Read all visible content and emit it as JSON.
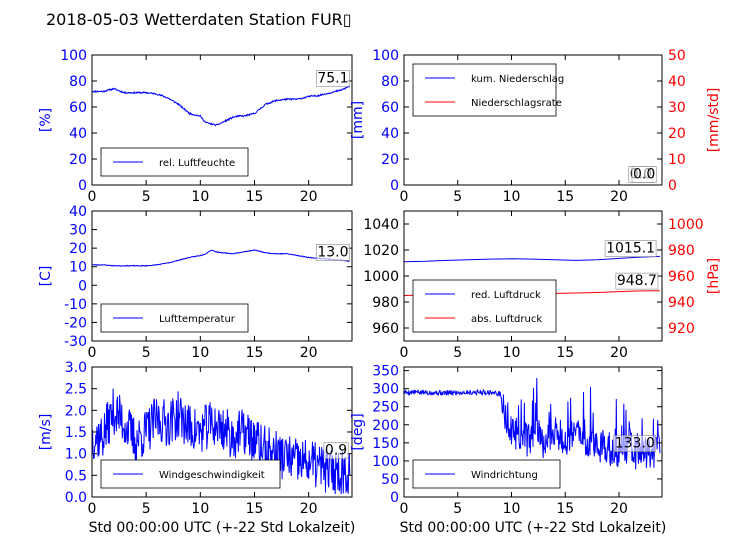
{
  "title": "2018-05-03 Wetterdaten Station FUR▯",
  "colors": {
    "blue": "#0000ff",
    "red": "#ff0000",
    "black": "#000000"
  },
  "chart_data": [
    {
      "id": "humidity",
      "type": "line",
      "ylabel": "[%]",
      "xlim": [
        0,
        24
      ],
      "ylim": [
        0,
        100
      ],
      "xticks": [
        0,
        5,
        10,
        15,
        20
      ],
      "yticks": [
        0,
        20,
        40,
        60,
        80,
        100
      ],
      "grid": false,
      "legend": {
        "position": "bottom-left",
        "entries": [
          {
            "label": "rel. Luftfeuchte",
            "color": "#0000ff"
          }
        ]
      },
      "annotation": {
        "text": "75.1",
        "x": 20.8,
        "y": 79
      },
      "series": [
        {
          "color": "#0000ff",
          "noise": 1.2,
          "seed": 11,
          "x": [
            0,
            1,
            2,
            3,
            4,
            5,
            6,
            7,
            8,
            9,
            10,
            10.5,
            11,
            11.5,
            12,
            12.5,
            13,
            13.5,
            14,
            15,
            16,
            17,
            18,
            19,
            20,
            21,
            22,
            23,
            23.8
          ],
          "y": [
            72,
            72,
            74,
            71,
            71,
            71,
            70,
            67,
            62,
            55,
            53,
            48,
            47,
            46,
            48,
            50,
            52,
            53,
            53,
            55,
            62,
            65,
            66,
            66,
            68,
            69,
            71,
            73,
            76
          ]
        }
      ]
    },
    {
      "id": "precipitation",
      "type": "line",
      "ylabel": "[mm]",
      "ylabel_right": "[mm/std]",
      "xlim": [
        0,
        24
      ],
      "ylim": [
        0,
        100
      ],
      "ylim_right": [
        0,
        50
      ],
      "xticks": [
        0,
        5,
        10,
        15,
        20
      ],
      "yticks": [
        0,
        20,
        40,
        60,
        80,
        100
      ],
      "yticks_right": [
        0,
        10,
        20,
        30,
        40,
        50
      ],
      "grid": false,
      "legend": {
        "position": "top-left",
        "entries": [
          {
            "label": "kum. Niederschlag",
            "color": "#0000ff"
          },
          {
            "label": "Niederschlagsrate",
            "color": "#ff0000"
          }
        ]
      },
      "annotation": {
        "text": "0.0",
        "x": 21,
        "y": 5
      },
      "annotation2": {
        "text": "0.0",
        "x": 21.3,
        "y": 5
      },
      "series": [
        {
          "color": "#0000ff",
          "axis": "left",
          "x": [
            0,
            23.8
          ],
          "y": [
            0,
            0
          ]
        },
        {
          "color": "#ff0000",
          "axis": "right",
          "x": [
            0,
            23.8
          ],
          "y": [
            0,
            0
          ]
        }
      ]
    },
    {
      "id": "temperature",
      "type": "line",
      "ylabel": "[C]",
      "xlim": [
        0,
        24
      ],
      "ylim": [
        -30,
        40
      ],
      "xticks": [
        0,
        5,
        10,
        15,
        20
      ],
      "yticks": [
        -30,
        -20,
        -10,
        0,
        10,
        20,
        30,
        40
      ],
      "grid": false,
      "legend": {
        "position": "bottom-left",
        "entries": [
          {
            "label": "Lufttemperatur",
            "color": "#0000ff"
          }
        ]
      },
      "annotation": {
        "text": "13.0",
        "x": 20.8,
        "y": 15.5
      },
      "series": [
        {
          "color": "#0000ff",
          "noise": 0.4,
          "seed": 23,
          "x": [
            0,
            1,
            2,
            3,
            4,
            5,
            6,
            7,
            8,
            9,
            10,
            10.5,
            11,
            11.5,
            12,
            13,
            14,
            15,
            16,
            17,
            18,
            19,
            20,
            21,
            22,
            23,
            23.8
          ],
          "y": [
            11,
            11,
            10.5,
            10.5,
            10.5,
            10.5,
            11,
            12,
            13.5,
            15,
            16,
            17,
            19,
            18,
            17.5,
            17,
            18,
            19,
            17.5,
            17,
            17,
            16,
            15,
            14.5,
            14,
            13.5,
            13
          ]
        }
      ]
    },
    {
      "id": "pressure",
      "type": "line",
      "ylabel_right": "[hPa]",
      "xlim": [
        0,
        24
      ],
      "ylim": [
        950,
        1050
      ],
      "ylim_right": [
        910,
        1010
      ],
      "xticks": [
        0,
        5,
        10,
        15,
        20
      ],
      "yticks": [
        960,
        980,
        1000,
        1020,
        1040
      ],
      "yticks_right": [
        920,
        940,
        960,
        980,
        1000
      ],
      "grid": false,
      "legend": {
        "position": "bottom-left",
        "entries": [
          {
            "label": "red. Luftdruck",
            "color": "#0000ff"
          },
          {
            "label": "abs. Luftdruck",
            "color": "#ff0000"
          }
        ]
      },
      "annotation": {
        "text": "1015.1",
        "x": 18.8,
        "y": 1018
      },
      "annotation2": {
        "text": "948.7",
        "x": 19.8,
        "y": 993
      },
      "series": [
        {
          "color": "#0000ff",
          "axis": "left",
          "x": [
            0,
            2,
            4,
            6,
            8,
            10,
            12,
            14,
            16,
            18,
            20,
            22,
            23.8
          ],
          "y": [
            1011,
            1011.3,
            1012,
            1012.5,
            1013,
            1013.2,
            1013,
            1012.5,
            1012,
            1012.5,
            1013.5,
            1014.5,
            1015.1
          ]
        },
        {
          "color": "#ff0000",
          "axis": "right",
          "x": [
            0,
            2,
            4,
            6,
            8,
            10,
            12,
            14,
            16,
            18,
            20,
            22,
            23.8
          ],
          "y": [
            945,
            945.3,
            945.8,
            946.1,
            946.3,
            946.5,
            946.5,
            946.6,
            946.9,
            947.3,
            948,
            948.5,
            948.7
          ]
        }
      ]
    },
    {
      "id": "wind_speed",
      "type": "line",
      "ylabel": "[m/s]",
      "xlabel": "Std 00:00:00 UTC (+-22 Std Lokalzeit)",
      "xlim": [
        0,
        24
      ],
      "ylim": [
        0,
        3
      ],
      "xticks": [
        0,
        5,
        10,
        15,
        20
      ],
      "yticks": [
        0.0,
        0.5,
        1.0,
        1.5,
        2.0,
        2.5,
        3.0
      ],
      "ytick_format": 1,
      "grid": false,
      "legend": {
        "position": "bottom-left",
        "entries": [
          {
            "label": "Windgeschwindigkeit",
            "color": "#0000ff"
          }
        ]
      },
      "annotation": {
        "text": "0.9",
        "x": 21.5,
        "y": 0.98
      },
      "series": [
        {
          "color": "#0000ff",
          "noise": 0.55,
          "seed": 37,
          "step": 0.05,
          "x": [
            0,
            1,
            2,
            3,
            4,
            5,
            6,
            7,
            8,
            9,
            10,
            11,
            12,
            13,
            14,
            15,
            16,
            17,
            18,
            19,
            20,
            21,
            22,
            23,
            23.8
          ],
          "y": [
            1.4,
            1.4,
            2.0,
            1.7,
            1.3,
            1.5,
            1.8,
            1.7,
            1.9,
            1.6,
            1.5,
            1.7,
            1.6,
            1.4,
            1.5,
            1.3,
            1.1,
            1.0,
            0.9,
            0.8,
            0.8,
            0.7,
            0.6,
            0.6,
            0.6
          ]
        }
      ]
    },
    {
      "id": "wind_direction",
      "type": "line",
      "ylabel": "[deg]",
      "xlabel": "Std 00:00:00 UTC (+-22 Std Lokalzeit)",
      "xlim": [
        0,
        24
      ],
      "ylim": [
        0,
        360
      ],
      "xticks": [
        0,
        5,
        10,
        15,
        20
      ],
      "yticks": [
        0,
        50,
        100,
        150,
        200,
        250,
        300,
        350
      ],
      "grid": false,
      "legend": {
        "position": "bottom-left",
        "entries": [
          {
            "label": "Windrichtung",
            "color": "#0000ff"
          }
        ]
      },
      "annotation": {
        "text": "133.0",
        "x": 19.6,
        "y": 137
      },
      "series": [
        {
          "color": "#0000ff",
          "noise": 0,
          "seed": 5,
          "step": 0.05,
          "x": [
            0,
            2,
            4,
            6,
            8,
            9,
            9.5,
            10,
            11,
            12,
            13,
            14,
            15,
            16,
            17,
            18,
            19,
            20,
            21,
            22,
            23,
            23.8
          ],
          "y": [
            290,
            290,
            288,
            290,
            290,
            285,
            210,
            180,
            170,
            175,
            150,
            185,
            160,
            175,
            150,
            160,
            125,
            120,
            140,
            130,
            120,
            133
          ]
        }
      ]
    }
  ]
}
